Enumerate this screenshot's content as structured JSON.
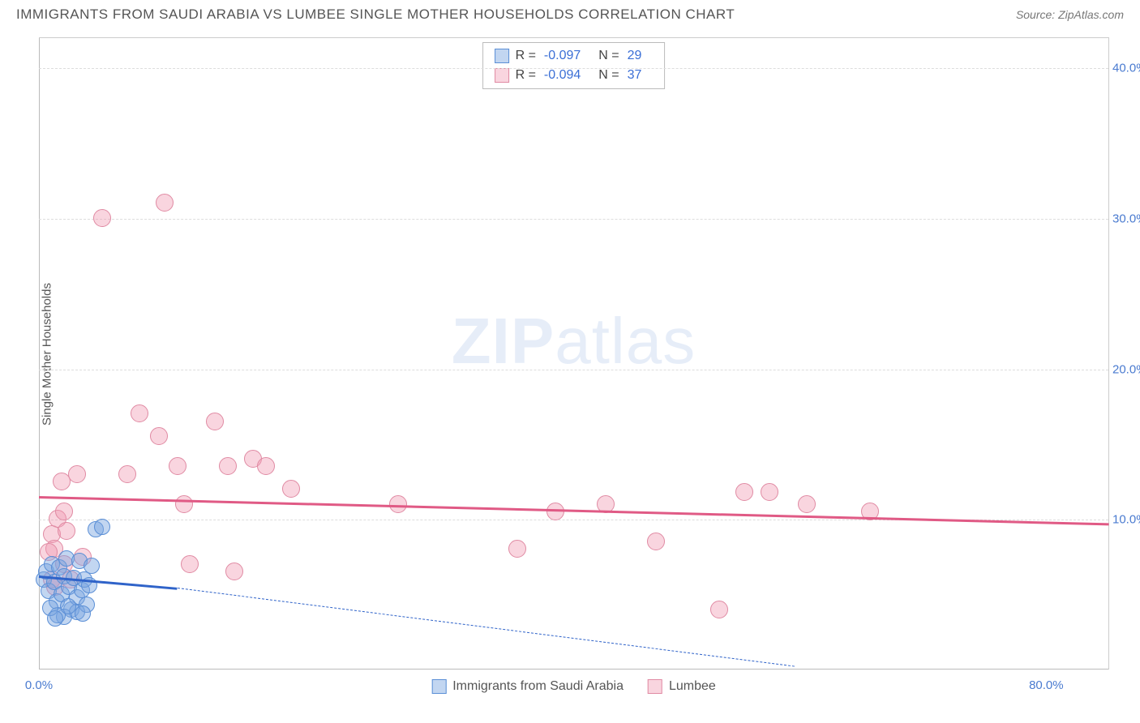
{
  "title": "IMMIGRANTS FROM SAUDI ARABIA VS LUMBEE SINGLE MOTHER HOUSEHOLDS CORRELATION CHART",
  "source_label": "Source: ",
  "source_name": "ZipAtlas.com",
  "watermark_a": "ZIP",
  "watermark_b": "atlas",
  "axes": {
    "ylabel": "Single Mother Households",
    "xmin": 0,
    "xmax": 85,
    "ymin": 0,
    "ymax": 42,
    "y_ticks": [
      10,
      20,
      30,
      40
    ],
    "y_tick_labels": [
      "10.0%",
      "20.0%",
      "30.0%",
      "40.0%"
    ],
    "x_ticks": [
      0,
      80
    ],
    "x_tick_labels": [
      "0.0%",
      "80.0%"
    ],
    "grid_color": "#dddddd",
    "tick_color": "#4a7bd0"
  },
  "legend_stats": {
    "series": [
      {
        "r_label": "R = ",
        "r_value": "-0.097",
        "n_label": "N = ",
        "n_value": "29"
      },
      {
        "r_label": "R = ",
        "r_value": "-0.094",
        "n_label": "N = ",
        "n_value": "37"
      }
    ]
  },
  "bottom_legend": {
    "a": "Immigrants from Saudi Arabia",
    "b": "Lumbee"
  },
  "series": {
    "saudi": {
      "fill": "rgba(120,165,225,0.45)",
      "stroke": "#5b8fd6",
      "marker_r": 10,
      "trend": {
        "x1": 0,
        "y1": 6.3,
        "x2": 11,
        "y2": 5.5,
        "color": "#2f63c9",
        "width": 3,
        "dash": "solid"
      },
      "trend_ext": {
        "x1": 11,
        "y1": 5.5,
        "x2": 60,
        "y2": 0.3,
        "color": "#2f63c9",
        "width": 1.5,
        "dash": "dashed"
      },
      "points": [
        [
          0.4,
          6.0
        ],
        [
          0.6,
          6.5
        ],
        [
          0.8,
          5.2
        ],
        [
          1.0,
          7.0
        ],
        [
          1.2,
          5.8
        ],
        [
          1.4,
          4.5
        ],
        [
          1.6,
          6.8
        ],
        [
          1.8,
          5.0
        ],
        [
          2.0,
          6.2
        ],
        [
          2.2,
          7.4
        ],
        [
          2.4,
          5.5
        ],
        [
          2.6,
          4.0
        ],
        [
          2.8,
          6.1
        ],
        [
          3.0,
          4.8
        ],
        [
          3.2,
          7.2
        ],
        [
          3.4,
          5.3
        ],
        [
          3.0,
          3.8
        ],
        [
          3.6,
          6.0
        ],
        [
          3.8,
          4.3
        ],
        [
          4.0,
          5.6
        ],
        [
          4.2,
          6.9
        ],
        [
          4.5,
          9.3
        ],
        [
          5.0,
          9.5
        ],
        [
          2.0,
          3.5
        ],
        [
          1.5,
          3.6
        ],
        [
          2.3,
          4.2
        ],
        [
          0.9,
          4.1
        ],
        [
          1.3,
          3.4
        ],
        [
          3.5,
          3.7
        ]
      ]
    },
    "lumbee": {
      "fill": "rgba(240,150,175,0.40)",
      "stroke": "#e08aa3",
      "marker_r": 11,
      "trend": {
        "x1": 0,
        "y1": 11.6,
        "x2": 85,
        "y2": 9.8,
        "color": "#e05a85",
        "width": 3,
        "dash": "solid"
      },
      "points": [
        [
          1.0,
          9.0
        ],
        [
          1.2,
          8.0
        ],
        [
          1.5,
          10.0
        ],
        [
          1.8,
          12.5
        ],
        [
          2.0,
          7.0
        ],
        [
          2.2,
          9.2
        ],
        [
          2.5,
          6.0
        ],
        [
          3.0,
          13.0
        ],
        [
          3.5,
          7.5
        ],
        [
          5.0,
          30.0
        ],
        [
          7.0,
          13.0
        ],
        [
          8.0,
          17.0
        ],
        [
          9.5,
          15.5
        ],
        [
          10.0,
          31.0
        ],
        [
          11.0,
          13.5
        ],
        [
          11.5,
          11.0
        ],
        [
          12.0,
          7.0
        ],
        [
          14.0,
          16.5
        ],
        [
          15.0,
          13.5
        ],
        [
          15.5,
          6.5
        ],
        [
          17.0,
          14.0
        ],
        [
          18.0,
          13.5
        ],
        [
          20.0,
          12.0
        ],
        [
          28.5,
          11.0
        ],
        [
          38.0,
          8.0
        ],
        [
          41.0,
          10.5
        ],
        [
          45.0,
          11.0
        ],
        [
          49.0,
          8.5
        ],
        [
          54.0,
          4.0
        ],
        [
          56.0,
          11.8
        ],
        [
          58.0,
          11.8
        ],
        [
          61.0,
          11.0
        ],
        [
          66.0,
          10.5
        ],
        [
          1.0,
          6.0
        ],
        [
          1.3,
          5.5
        ],
        [
          2.0,
          10.5
        ],
        [
          0.8,
          7.8
        ]
      ]
    }
  }
}
